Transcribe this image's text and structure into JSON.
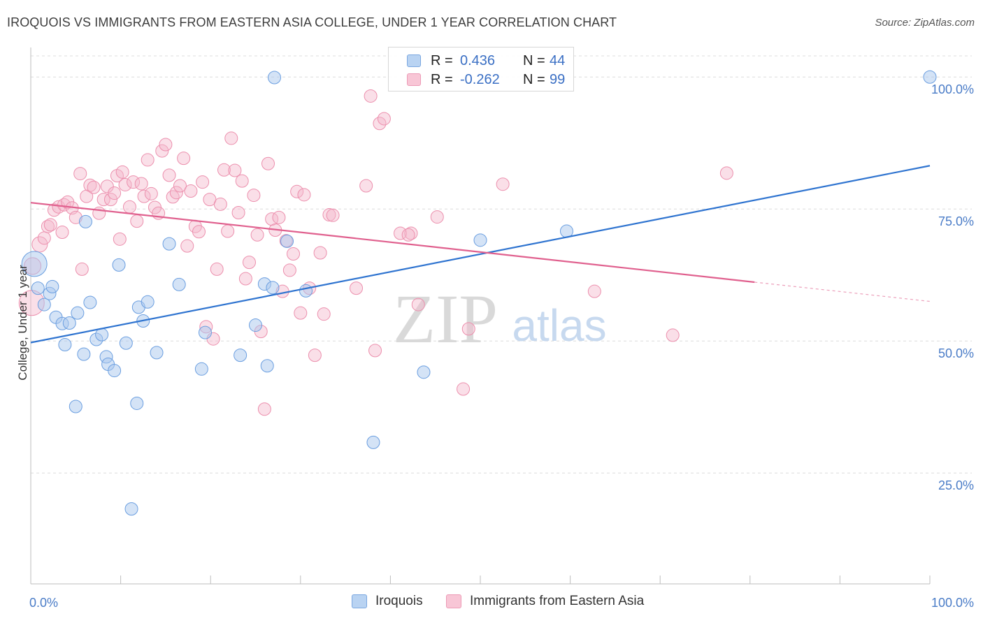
{
  "title": "IROQUOIS VS IMMIGRANTS FROM EASTERN ASIA COLLEGE, UNDER 1 YEAR CORRELATION CHART",
  "source": "Source: ZipAtlas.com",
  "watermark": {
    "zip": "ZIP",
    "atlas": "atlas"
  },
  "colors": {
    "blue_fill": "#a9c8ee",
    "blue_stroke": "#6a9ee0",
    "blue_line": "#2f74d0",
    "pink_fill": "#f5b8cb",
    "pink_stroke": "#ec8fad",
    "pink_line": "#e0608e",
    "tick_text": "#4a7cc7"
  },
  "legend_top": [
    {
      "r_label": "R =",
      "r_value": "0.436",
      "n_label": "N =",
      "n_value": "44"
    },
    {
      "r_label": "R =",
      "r_value": "-0.262",
      "n_label": "N =",
      "n_value": "99"
    }
  ],
  "legend_bottom": [
    "Iroquois",
    "Immigrants from Eastern Asia"
  ],
  "chart_data": {
    "type": "scatter",
    "title": "IROQUOIS VS IMMIGRANTS FROM EASTERN ASIA COLLEGE, UNDER 1 YEAR CORRELATION CHART",
    "xlabel": "",
    "ylabel": "College, Under 1 year",
    "xlim": [
      0,
      100
    ],
    "ylim": [
      4,
      104
    ],
    "x_tick_labels": [
      "0.0%",
      "100.0%"
    ],
    "y_tick_labels": [
      "25.0%",
      "50.0%",
      "75.0%",
      "100.0%"
    ],
    "y_ticks": [
      25,
      50,
      75,
      100
    ],
    "grid": true,
    "legend_position": "top-center",
    "series": [
      {
        "name": "Iroquois",
        "color": "#a9c8ee",
        "trend": {
          "x": [
            0,
            100
          ],
          "y": [
            49.7,
            83.2
          ],
          "dashed_from": null
        },
        "points": [
          [
            0.4,
            64.6,
            18
          ],
          [
            0.8,
            60,
            9
          ],
          [
            1.5,
            56.9,
            9
          ],
          [
            2.1,
            59,
            9
          ],
          [
            2.8,
            54.5,
            9
          ],
          [
            3.5,
            53.3,
            9
          ],
          [
            3.8,
            49.3,
            9
          ],
          [
            4.3,
            53.4,
            9
          ],
          [
            5.2,
            55.3,
            9
          ],
          [
            5.9,
            47.5,
            9
          ],
          [
            6.1,
            72.6,
            9
          ],
          [
            6.6,
            57.3,
            9
          ],
          [
            7.3,
            50.3,
            9
          ],
          [
            7.9,
            51.2,
            9
          ],
          [
            8.4,
            47,
            9
          ],
          [
            8.6,
            45.6,
            9
          ],
          [
            9.3,
            44.4,
            9
          ],
          [
            9.8,
            64.4,
            9
          ],
          [
            10.6,
            49.6,
            9
          ],
          [
            11.2,
            18.2,
            9
          ],
          [
            11.8,
            38.2,
            9
          ],
          [
            12,
            56.4,
            9
          ],
          [
            12.5,
            53.8,
            9
          ],
          [
            13,
            57.4,
            9
          ],
          [
            14,
            47.8,
            9
          ],
          [
            15.4,
            68.4,
            9
          ],
          [
            16.5,
            60.7,
            9
          ],
          [
            19,
            44.7,
            9
          ],
          [
            19.4,
            51.6,
            9
          ],
          [
            23.3,
            47.3,
            9
          ],
          [
            25,
            53,
            9
          ],
          [
            26,
            60.8,
            9
          ],
          [
            26.9,
            60.1,
            9
          ],
          [
            27.1,
            99.9,
            9
          ],
          [
            26.3,
            45.3,
            9
          ],
          [
            28.5,
            68.9,
            9
          ],
          [
            30.6,
            59.5,
            9
          ],
          [
            38.1,
            30.8,
            9
          ],
          [
            43.7,
            44.1,
            9
          ],
          [
            50,
            69.1,
            9
          ],
          [
            59.6,
            70.8,
            9
          ],
          [
            100,
            100,
            9
          ],
          [
            5,
            37.6,
            9
          ],
          [
            2.4,
            60.3,
            9
          ]
        ]
      },
      {
        "name": "Immigrants from Eastern Asia",
        "color": "#f5b8cb",
        "trend": {
          "x": [
            0,
            100
          ],
          "y": [
            76.2,
            57.5
          ],
          "dashed_from": 80.5
        },
        "points": [
          [
            0.1,
            57.2,
            18
          ],
          [
            0.2,
            64.2,
            12
          ],
          [
            1,
            68.3,
            11
          ],
          [
            1.5,
            69.5,
            9
          ],
          [
            1.9,
            71.7,
            9
          ],
          [
            2.2,
            72,
            9
          ],
          [
            2.6,
            74.8,
            9
          ],
          [
            3.1,
            75.4,
            9
          ],
          [
            3.5,
            70.6,
            9
          ],
          [
            3.7,
            75.8,
            9
          ],
          [
            4.1,
            76.3,
            9
          ],
          [
            4.6,
            75.2,
            9
          ],
          [
            5,
            73.4,
            9
          ],
          [
            5.5,
            81.7,
            9
          ],
          [
            5.7,
            63.6,
            9
          ],
          [
            6.2,
            77.4,
            9
          ],
          [
            6.6,
            79.5,
            9
          ],
          [
            7,
            79.1,
            9
          ],
          [
            7.6,
            74.2,
            9
          ],
          [
            8.1,
            76.8,
            9
          ],
          [
            8.5,
            79.3,
            9
          ],
          [
            8.9,
            76.8,
            9
          ],
          [
            9.3,
            78,
            9
          ],
          [
            9.6,
            81.3,
            9
          ],
          [
            9.9,
            69.3,
            9
          ],
          [
            10.2,
            82,
            9
          ],
          [
            10.5,
            79.6,
            9
          ],
          [
            11,
            75.4,
            9
          ],
          [
            11.4,
            80.1,
            9
          ],
          [
            11.8,
            72.7,
            9
          ],
          [
            12.3,
            79.8,
            9
          ],
          [
            12.6,
            77.4,
            9
          ],
          [
            13,
            84.3,
            9
          ],
          [
            13.4,
            77.9,
            9
          ],
          [
            13.8,
            75.3,
            9
          ],
          [
            14.2,
            74.2,
            9
          ],
          [
            14.6,
            86,
            9
          ],
          [
            15,
            87.2,
            9
          ],
          [
            15.4,
            81.4,
            9
          ],
          [
            15.8,
            77.3,
            9
          ],
          [
            16.2,
            78.1,
            9
          ],
          [
            16.6,
            79.4,
            9
          ],
          [
            17,
            84.6,
            9
          ],
          [
            17.4,
            68,
            9
          ],
          [
            17.8,
            78.4,
            9
          ],
          [
            18.3,
            71.7,
            9
          ],
          [
            18.7,
            70.7,
            9
          ],
          [
            19.1,
            80.1,
            9
          ],
          [
            19.5,
            52.7,
            9
          ],
          [
            19.9,
            76.8,
            9
          ],
          [
            20.3,
            50.4,
            9
          ],
          [
            20.7,
            63.6,
            9
          ],
          [
            21.1,
            75.9,
            9
          ],
          [
            21.5,
            82.4,
            9
          ],
          [
            21.9,
            70.8,
            9
          ],
          [
            22.3,
            88.4,
            9
          ],
          [
            22.7,
            82.3,
            9
          ],
          [
            23.1,
            74.3,
            9
          ],
          [
            23.5,
            80.3,
            9
          ],
          [
            23.9,
            61.8,
            9
          ],
          [
            24.3,
            64.9,
            9
          ],
          [
            24.8,
            77.6,
            9
          ],
          [
            25.2,
            70.1,
            9
          ],
          [
            25.6,
            51.8,
            9
          ],
          [
            26,
            37.1,
            9
          ],
          [
            26.4,
            83.6,
            9
          ],
          [
            26.8,
            73.1,
            9
          ],
          [
            27.2,
            71,
            9
          ],
          [
            27.6,
            73.4,
            9
          ],
          [
            28,
            59.4,
            9
          ],
          [
            28.4,
            69,
            9
          ],
          [
            28.8,
            63.4,
            9
          ],
          [
            29.2,
            66.5,
            9
          ],
          [
            29.6,
            78.3,
            9
          ],
          [
            30,
            55.3,
            9
          ],
          [
            30.4,
            77.7,
            9
          ],
          [
            31,
            60,
            9
          ],
          [
            31.6,
            47.3,
            9
          ],
          [
            32.2,
            66.7,
            9
          ],
          [
            32.6,
            55.1,
            9
          ],
          [
            33.2,
            73.9,
            9
          ],
          [
            33.6,
            73.8,
            9
          ],
          [
            36.2,
            60,
            9
          ],
          [
            37.3,
            79.4,
            9
          ],
          [
            37.8,
            96.4,
            9
          ],
          [
            38.3,
            48.2,
            9
          ],
          [
            38.8,
            91.2,
            9
          ],
          [
            39.3,
            92.1,
            9
          ],
          [
            41.1,
            70.4,
            9
          ],
          [
            42.3,
            70.4,
            9
          ],
          [
            43.1,
            56.9,
            9
          ],
          [
            45.2,
            73.5,
            9
          ],
          [
            48.1,
            40.9,
            9
          ],
          [
            48.7,
            52.3,
            9
          ],
          [
            52.5,
            79.7,
            9
          ],
          [
            62.7,
            59.4,
            9
          ],
          [
            71.4,
            51.1,
            9
          ],
          [
            77.4,
            81.8,
            9
          ],
          [
            42,
            70.1,
            9
          ]
        ]
      }
    ]
  }
}
